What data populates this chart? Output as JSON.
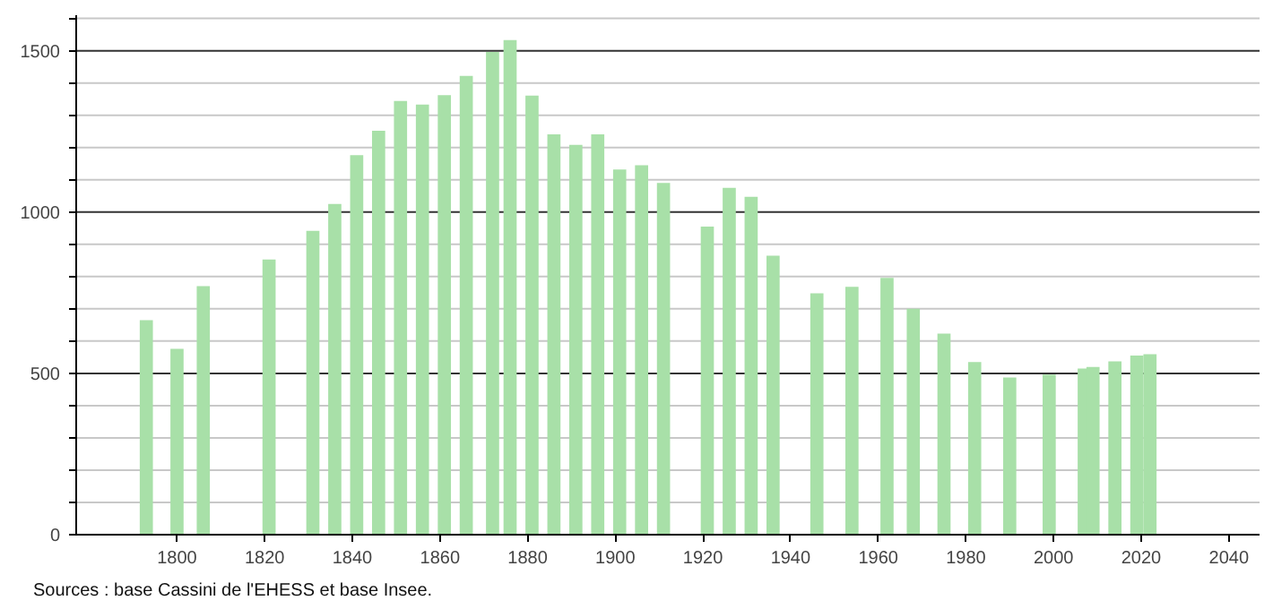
{
  "chart_data": {
    "type": "bar",
    "x": [
      1793,
      1800,
      1806,
      1821,
      1831,
      1836,
      1841,
      1846,
      1851,
      1856,
      1861,
      1866,
      1872,
      1876,
      1881,
      1886,
      1891,
      1896,
      1901,
      1906,
      1911,
      1921,
      1926,
      1931,
      1936,
      1946,
      1954,
      1962,
      1968,
      1975,
      1982,
      1990,
      1999,
      2007,
      2009,
      2014,
      2019,
      2022
    ],
    "values": [
      665,
      576,
      770,
      853,
      942,
      1025,
      1176,
      1252,
      1344,
      1333,
      1362,
      1422,
      1496,
      1533,
      1361,
      1241,
      1208,
      1241,
      1132,
      1145,
      1090,
      955,
      1075,
      1047,
      865,
      748,
      768,
      796,
      700,
      623,
      535,
      487,
      496,
      515,
      520,
      537,
      555,
      559
    ],
    "color": "#a8e0a8",
    "xlim": [
      1777,
      2047
    ],
    "ylim": [
      0,
      1610
    ],
    "xticks": [
      1800,
      1820,
      1840,
      1860,
      1880,
      1900,
      1920,
      1940,
      1960,
      1980,
      2000,
      2020,
      2040
    ],
    "yticks": [
      0,
      {
        "value": 100,
        "label": null
      },
      {
        "value": 200,
        "label": null
      },
      {
        "value": 300,
        "label": null
      },
      {
        "value": 400,
        "label": null
      },
      500,
      {
        "value": 600,
        "label": null
      },
      {
        "value": 700,
        "label": null
      },
      {
        "value": 800,
        "label": null
      },
      {
        "value": 900,
        "label": null
      },
      1000,
      {
        "value": 1100,
        "label": null
      },
      {
        "value": 1200,
        "label": null
      },
      {
        "value": 1300,
        "label": null
      },
      {
        "value": 1400,
        "label": null
      },
      1500,
      {
        "value": 1600,
        "label": null
      }
    ],
    "grid": "y",
    "annotations": [
      "Sources : base Cassini de l'EHESS et base Insee."
    ]
  }
}
